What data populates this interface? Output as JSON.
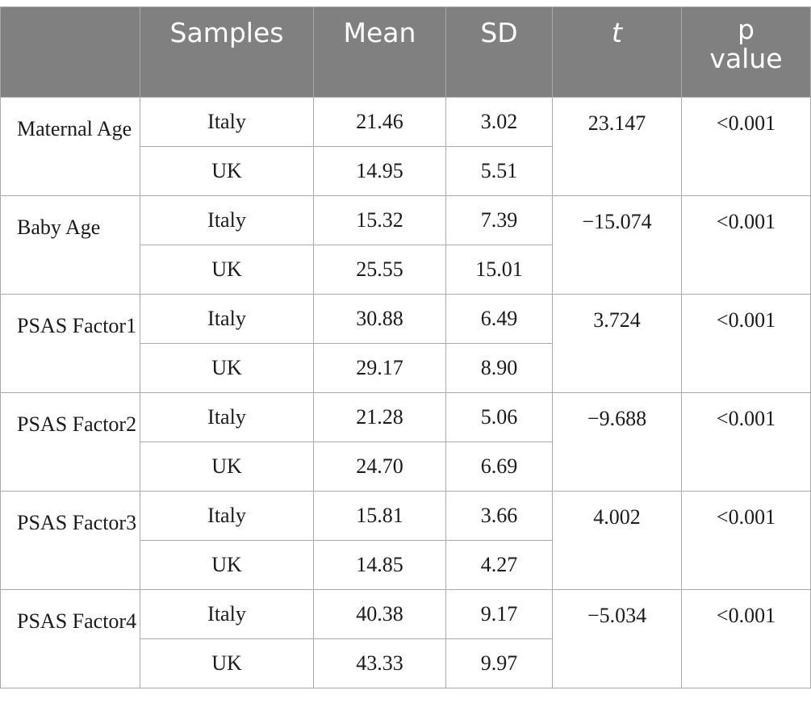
{
  "headers": [
    "",
    "Samples",
    "Mean",
    "SD",
    "t",
    "p value"
  ],
  "rows": [
    {
      "variable": "Maternal Age",
      "t": "23.147",
      "p": "<0.001",
      "samples": [
        {
          "name": "Italy",
          "mean": "21.46",
          "sd": "3.02"
        },
        {
          "name": "UK",
          "mean": "14.95",
          "sd": "5.51"
        }
      ]
    },
    {
      "variable": "Baby Age",
      "t": "−15.074",
      "p": "<0.001",
      "samples": [
        {
          "name": "Italy",
          "mean": "15.32",
          "sd": "7.39"
        },
        {
          "name": "UK",
          "mean": "25.55",
          "sd": "15.01"
        }
      ]
    },
    {
      "variable": "PSAS Factor1",
      "t": "3.724",
      "p": "<0.001",
      "samples": [
        {
          "name": "Italy",
          "mean": "30.88",
          "sd": "6.49"
        },
        {
          "name": "UK",
          "mean": "29.17",
          "sd": "8.90"
        }
      ]
    },
    {
      "variable": "PSAS Factor2",
      "t": "−9.688",
      "p": "<0.001",
      "samples": [
        {
          "name": "Italy",
          "mean": "21.28",
          "sd": "5.06"
        },
        {
          "name": "UK",
          "mean": "24.70",
          "sd": "6.69"
        }
      ]
    },
    {
      "variable": "PSAS Factor3",
      "t": "4.002",
      "p": "<0.001",
      "samples": [
        {
          "name": "Italy",
          "mean": "15.81",
          "sd": "3.66"
        },
        {
          "name": "UK",
          "mean": "14.85",
          "sd": "4.27"
        }
      ]
    },
    {
      "variable": "PSAS Factor4",
      "t": "−5.034",
      "p": "<0.001",
      "samples": [
        {
          "name": "Italy",
          "mean": "40.38",
          "sd": "9.17"
        },
        {
          "name": "UK",
          "mean": "43.33",
          "sd": "9.97"
        }
      ]
    }
  ]
}
